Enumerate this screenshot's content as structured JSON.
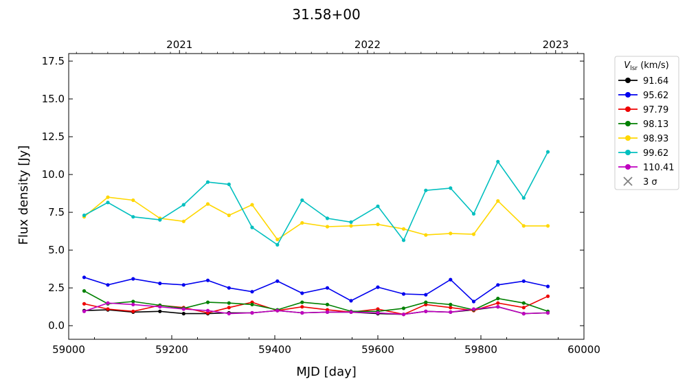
{
  "chart_data": {
    "type": "line",
    "title": "31.58+00",
    "xlabel": "MJD [day]",
    "ylabel": "Flux density [Jy]",
    "xlim": [
      59000,
      60000
    ],
    "ylim": [
      -0.9,
      18.0
    ],
    "x_ticks": [
      "59000",
      "59200",
      "59400",
      "59600",
      "59800",
      "60000"
    ],
    "y_ticks": [
      "0.0",
      "2.5",
      "5.0",
      "7.5",
      "10.0",
      "12.5",
      "15.0",
      "17.5"
    ],
    "top_axis_ticks": [
      {
        "label": "2021",
        "mjd": 59215
      },
      {
        "label": "2022",
        "mjd": 59580
      },
      {
        "label": "2023",
        "mjd": 59945
      }
    ],
    "legend_title": "V_lsr (km/s)",
    "legend_title_main": "V",
    "legend_title_sub": "lsr",
    "legend_title_rest": " (km/s)",
    "legend_position": "outside-right",
    "upper_limit_label": "3 σ",
    "x": [
      59030,
      59076,
      59125,
      59177,
      59223,
      59270,
      59311,
      59356,
      59405,
      59453,
      59502,
      59548,
      59600,
      59650,
      59693,
      59741,
      59786,
      59833,
      59883,
      59930
    ],
    "series": [
      {
        "name": "91.64",
        "color": "#000000",
        "values": [
          1.0,
          1.05,
          0.9,
          0.95,
          0.8,
          0.8,
          0.85,
          0.85,
          1.0,
          0.85,
          0.9,
          0.9,
          0.8,
          0.75,
          0.95,
          0.9,
          1.05,
          1.25,
          0.8,
          0.85
        ]
      },
      {
        "name": "95.62",
        "color": "#0000ee",
        "values": [
          3.2,
          2.7,
          3.1,
          2.8,
          2.7,
          3.0,
          2.5,
          2.25,
          2.95,
          2.15,
          2.5,
          1.65,
          2.55,
          2.1,
          2.05,
          3.05,
          1.6,
          2.7,
          2.95,
          2.6
        ]
      },
      {
        "name": "97.79",
        "color": "#ee0000",
        "values": [
          1.45,
          1.1,
          0.95,
          1.35,
          1.2,
          0.85,
          1.2,
          1.55,
          1.0,
          1.25,
          1.05,
          0.9,
          1.1,
          0.75,
          1.4,
          1.2,
          1.0,
          1.5,
          1.2,
          1.95
        ]
      },
      {
        "name": "98.13",
        "color": "#008000",
        "values": [
          2.3,
          1.45,
          1.6,
          1.35,
          1.15,
          1.55,
          1.5,
          1.4,
          1.05,
          1.55,
          1.4,
          0.95,
          0.95,
          1.15,
          1.55,
          1.4,
          1.05,
          1.8,
          1.5,
          0.95
        ]
      },
      {
        "name": "98.93",
        "color": "#ffd700",
        "values": [
          7.2,
          8.5,
          8.3,
          7.1,
          6.9,
          8.05,
          7.3,
          8.0,
          5.7,
          6.8,
          6.55,
          6.6,
          6.7,
          6.4,
          6.0,
          6.1,
          6.05,
          8.25,
          6.6,
          6.6
        ]
      },
      {
        "name": "99.62",
        "color": "#00bfbf",
        "values": [
          7.3,
          8.15,
          7.2,
          7.0,
          8.0,
          9.5,
          9.35,
          6.5,
          5.35,
          8.3,
          7.1,
          6.85,
          7.9,
          5.65,
          8.95,
          9.1,
          7.4,
          10.85,
          8.45,
          11.5
        ]
      },
      {
        "name": "110.41",
        "color": "#bf00bf",
        "values": [
          0.95,
          1.5,
          1.4,
          1.25,
          1.1,
          1.0,
          0.8,
          0.85,
          1.0,
          0.85,
          0.9,
          0.9,
          0.85,
          0.75,
          0.95,
          0.9,
          1.1,
          1.25,
          0.8,
          0.85
        ]
      }
    ]
  }
}
